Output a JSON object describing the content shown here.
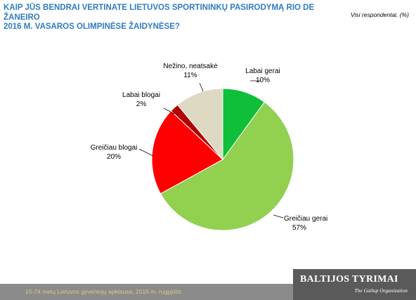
{
  "header": {
    "title_line1": "KAIP JŪS BENDRAI VERTINATE LIETUVOS SPORTININKŲ PASIRODYMĄ RIO DE ŽANEIRO",
    "title_line2": "2016 M. VASAROS OLIMPINĖSE ŽAIDYNĖSE?",
    "note": "Visi respondentai, (%)"
  },
  "chart_data": {
    "type": "pie",
    "start_angle_deg": 0,
    "direction": "clockwise",
    "slices": [
      {
        "label": "Labai gerai",
        "value": 10,
        "value_label": "10%",
        "color": "#0fbf3a"
      },
      {
        "label": "Greičiau gerai",
        "value": 57,
        "value_label": "57%",
        "color": "#92d050"
      },
      {
        "label": "Greičiau blogai",
        "value": 20,
        "value_label": "20%",
        "color": "#ff0000"
      },
      {
        "label": "Labai blogai",
        "value": 2,
        "value_label": "2%",
        "color": "#b00000"
      },
      {
        "label": "Nežino, neatsakė",
        "value": 11,
        "value_label": "11%",
        "color": "#ddd9c3"
      }
    ]
  },
  "footer": {
    "source": "15-74 metų Lietuvos gyventojų apklausa, 2016 m. rugpjūtis"
  },
  "logo": {
    "name": "BALTIJOS TYRIMAI",
    "tagline": "The Gallup Organization"
  }
}
